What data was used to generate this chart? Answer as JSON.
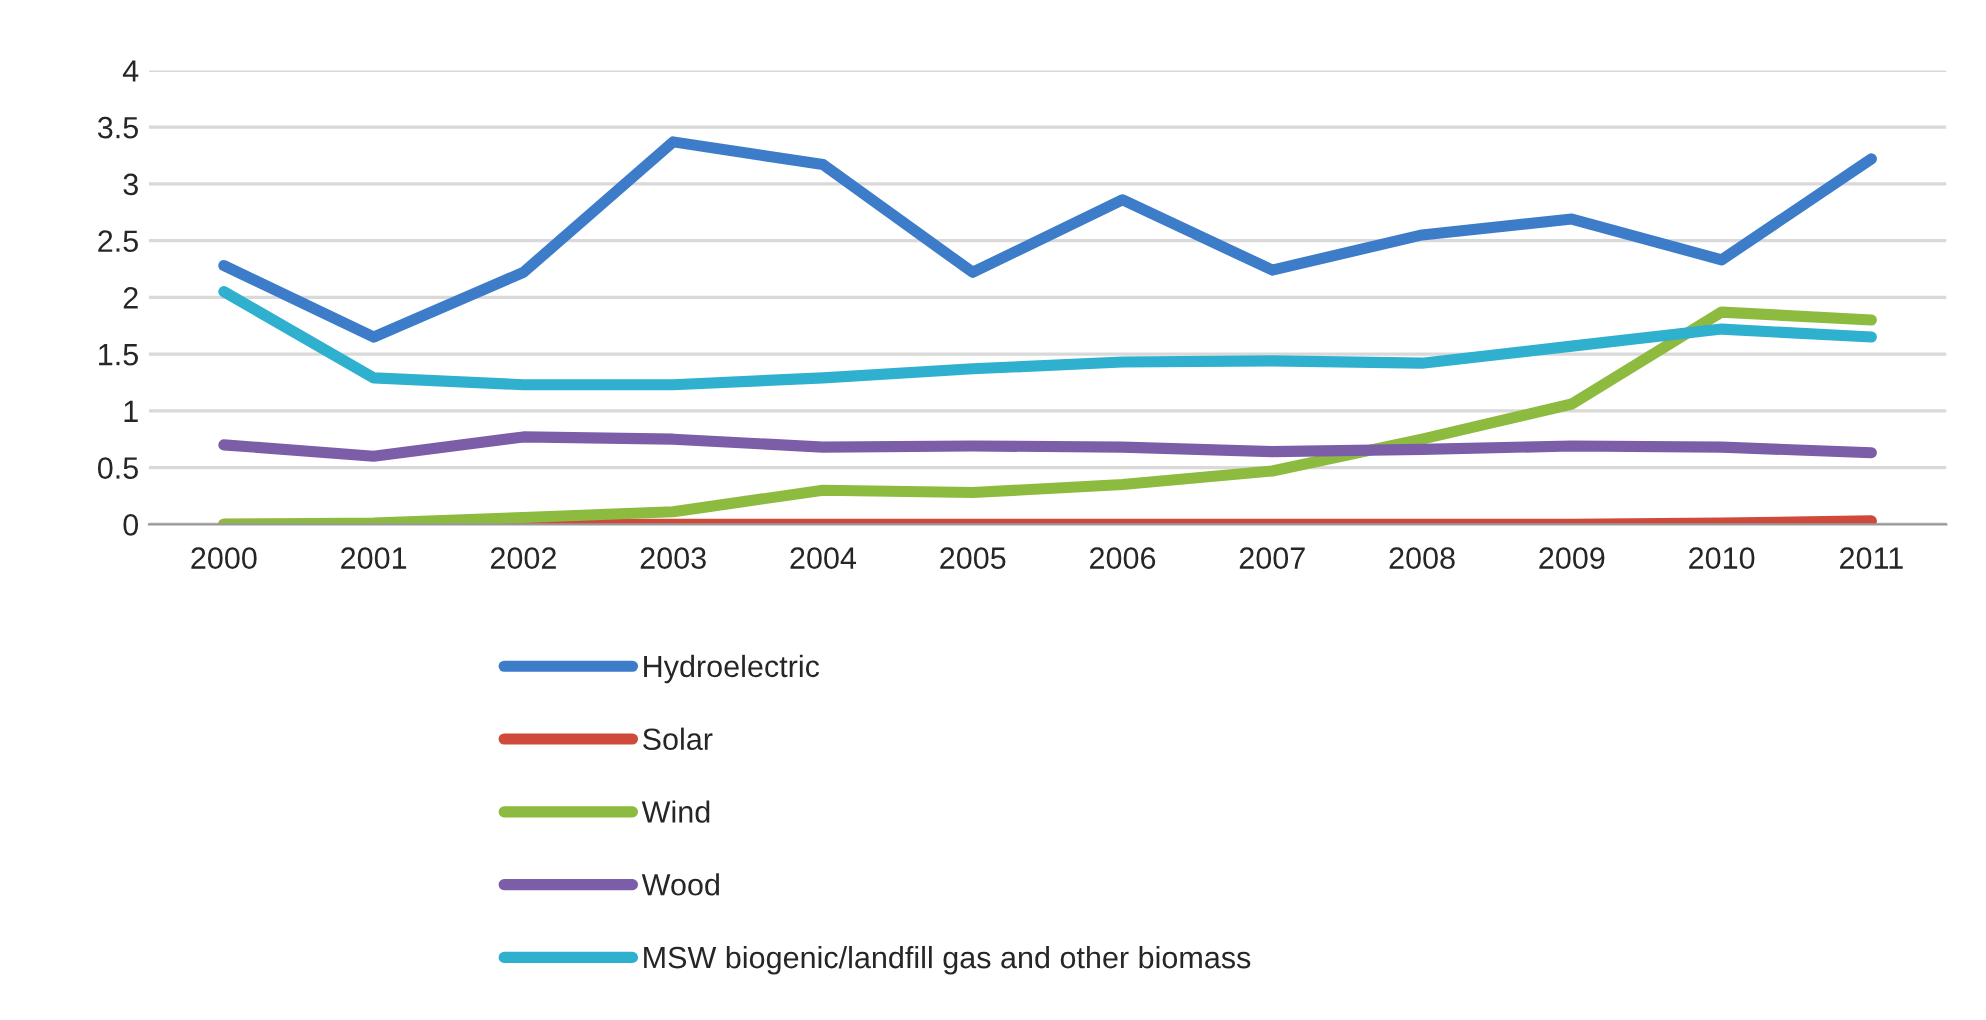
{
  "chart_data": {
    "type": "line",
    "categories": [
      "2000",
      "2001",
      "2002",
      "2003",
      "2004",
      "2005",
      "2006",
      "2007",
      "2008",
      "2009",
      "2010",
      "2011"
    ],
    "series": [
      {
        "name": "Hydroelectric",
        "color": "#3d7cc9",
        "values": [
          2.28,
          1.65,
          2.22,
          3.37,
          3.17,
          2.22,
          2.86,
          2.24,
          2.55,
          2.69,
          2.33,
          3.22
        ]
      },
      {
        "name": "Solar",
        "color": "#d04a3c",
        "values": [
          0,
          0,
          0,
          0,
          0,
          0,
          0,
          0,
          0,
          0,
          0.01,
          0.03
        ]
      },
      {
        "name": "Wind",
        "color": "#8dbb3f",
        "values": [
          0,
          0.01,
          0.06,
          0.11,
          0.3,
          0.28,
          0.35,
          0.47,
          0.75,
          1.06,
          1.87,
          1.8
        ]
      },
      {
        "name": "Wood",
        "color": "#7b5ea7",
        "values": [
          0.7,
          0.6,
          0.77,
          0.75,
          0.68,
          0.69,
          0.68,
          0.64,
          0.66,
          0.69,
          0.68,
          0.63
        ]
      },
      {
        "name": "MSW biogenic/landfill gas and other biomass",
        "color": "#2fb0cf",
        "values": [
          2.05,
          1.29,
          1.23,
          1.23,
          1.29,
          1.37,
          1.43,
          1.44,
          1.42,
          1.57,
          1.72,
          1.65
        ]
      }
    ],
    "ylim": [
      0,
      4
    ],
    "yticks": [
      0,
      0.5,
      1,
      1.5,
      2,
      2.5,
      3,
      3.5,
      4
    ],
    "grid": "y",
    "legend": "bottom",
    "marker": "none",
    "line_style": "solid"
  }
}
